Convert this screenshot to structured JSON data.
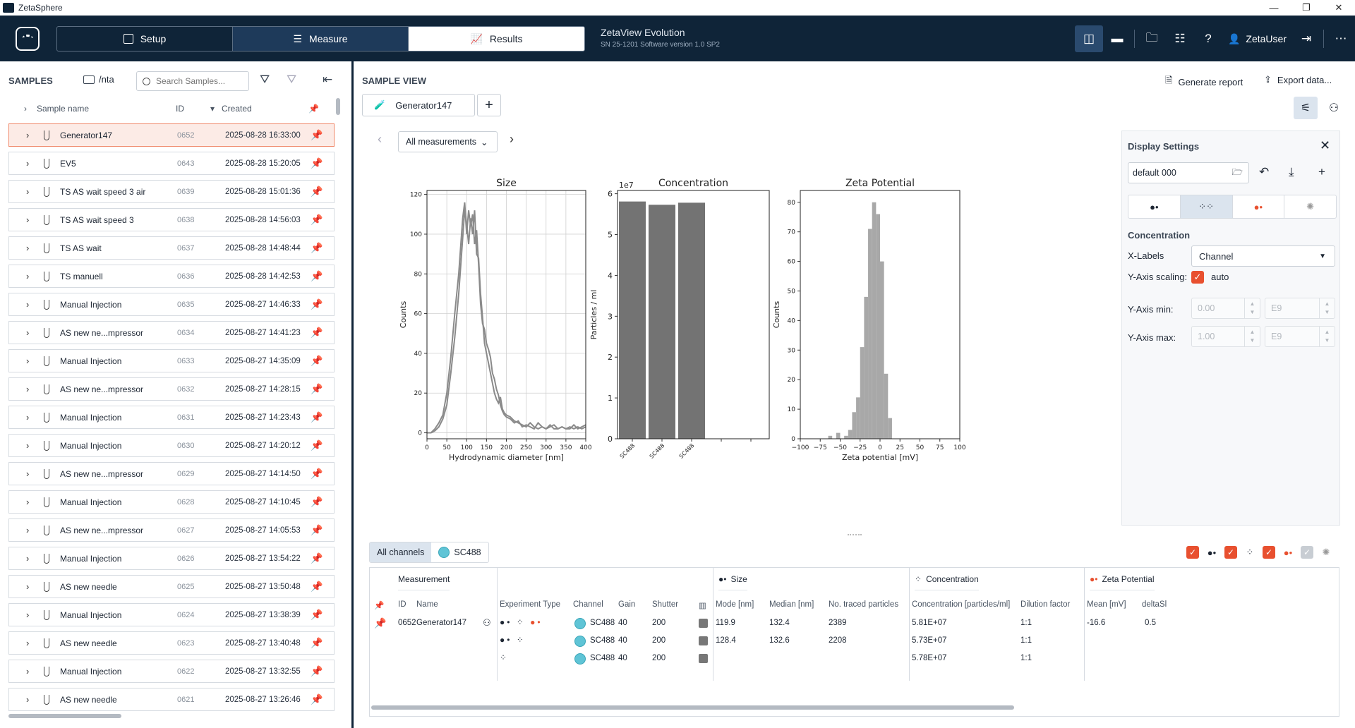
{
  "window": {
    "title": "ZetaSphere"
  },
  "nav": {
    "tabs": [
      {
        "label": "Setup"
      },
      {
        "label": "Measure"
      },
      {
        "label": "Results"
      }
    ],
    "active": "Results"
  },
  "device": {
    "name": "ZetaView Evolution",
    "info": "SN 25-1201  Software version 1.0 SP2"
  },
  "user": {
    "name": "ZetaUser"
  },
  "samples": {
    "header": "SAMPLES",
    "path": "/nta",
    "search_placeholder": "Search Samples...",
    "columns": {
      "name": "Sample name",
      "id": "ID",
      "created": "Created"
    },
    "rows": [
      {
        "name": "Generator147",
        "id": "0652",
        "created": "2025-08-28 16:33:00"
      },
      {
        "name": "EV5",
        "id": "0643",
        "created": "2025-08-28 15:20:05"
      },
      {
        "name": "TS AS wait speed 3 air",
        "id": "0639",
        "created": "2025-08-28 15:01:36"
      },
      {
        "name": "TS AS wait speed 3",
        "id": "0638",
        "created": "2025-08-28 14:56:03"
      },
      {
        "name": "TS AS wait",
        "id": "0637",
        "created": "2025-08-28 14:48:44"
      },
      {
        "name": "TS manuell",
        "id": "0636",
        "created": "2025-08-28 14:42:53"
      },
      {
        "name": "Manual Injection",
        "id": "0635",
        "created": "2025-08-27 14:46:33"
      },
      {
        "name": "AS new ne...mpressor",
        "id": "0634",
        "created": "2025-08-27 14:41:23"
      },
      {
        "name": "Manual Injection",
        "id": "0633",
        "created": "2025-08-27 14:35:09"
      },
      {
        "name": "AS new ne...mpressor",
        "id": "0632",
        "created": "2025-08-27 14:28:15"
      },
      {
        "name": "Manual Injection",
        "id": "0631",
        "created": "2025-08-27 14:23:43"
      },
      {
        "name": "Manual Injection",
        "id": "0630",
        "created": "2025-08-27 14:20:12"
      },
      {
        "name": "AS new ne...mpressor",
        "id": "0629",
        "created": "2025-08-27 14:14:50"
      },
      {
        "name": "Manual Injection",
        "id": "0628",
        "created": "2025-08-27 14:10:45"
      },
      {
        "name": "AS new ne...mpressor",
        "id": "0627",
        "created": "2025-08-27 14:05:53"
      },
      {
        "name": "Manual Injection",
        "id": "0626",
        "created": "2025-08-27 13:54:22"
      },
      {
        "name": "AS new needle",
        "id": "0625",
        "created": "2025-08-27 13:50:48"
      },
      {
        "name": "Manual Injection",
        "id": "0624",
        "created": "2025-08-27 13:38:39"
      },
      {
        "name": "AS new needle",
        "id": "0623",
        "created": "2025-08-27 13:40:48"
      },
      {
        "name": "Manual Injection",
        "id": "0622",
        "created": "2025-08-27 13:32:55"
      },
      {
        "name": "AS new needle",
        "id": "0621",
        "created": "2025-08-27 13:26:46"
      }
    ]
  },
  "sample_view": {
    "header": "SAMPLE VIEW",
    "tab": "Generator147",
    "generate_report": "Generate report",
    "export": "Export data...",
    "measurement_select": "All measurements"
  },
  "display_settings": {
    "title": "Display Settings",
    "preset": "default 000",
    "section": "Concentration",
    "xlabels_label": "X-Labels",
    "xlabels_value": "Channel",
    "yscale_label": "Y-Axis scaling:",
    "yscale_value": "auto",
    "ymin_label": "Y-Axis min:",
    "ymin_value": "0.00",
    "ymin_unit": "E9",
    "ymax_label": "Y-Axis max:",
    "ymax_value": "1.00",
    "ymax_unit": "E9"
  },
  "channels": {
    "all": "All channels",
    "sc": "SC488"
  },
  "table": {
    "groups": {
      "measurement": "Measurement",
      "size": "Size",
      "concentration": "Concentration",
      "zeta": "Zeta Potential"
    },
    "headers": {
      "id": "ID",
      "name": "Name",
      "exp": "Experiment Type",
      "channel": "Channel",
      "gain": "Gain",
      "shutter": "Shutter",
      "mode": "Mode [nm]",
      "median": "Median [nm]",
      "traced": "No. traced particles",
      "conc": "Concentration [particles/ml]",
      "dilution": "Dilution factor",
      "mean": "Mean [mV]",
      "delta": "deltaSl"
    },
    "rows": [
      {
        "id": "0652",
        "name": "Generator147",
        "channel": "SC488",
        "gain": "40",
        "shutter": "200",
        "mode": "119.9",
        "median": "132.4",
        "traced": "2389",
        "conc": "5.81E+07",
        "dilution": "1:1",
        "mean": "-16.6",
        "delta": "0.5"
      },
      {
        "channel": "SC488",
        "gain": "40",
        "shutter": "200",
        "mode": "128.4",
        "median": "132.6",
        "traced": "2208",
        "conc": "5.73E+07",
        "dilution": "1:1"
      },
      {
        "channel": "SC488",
        "gain": "40",
        "shutter": "200",
        "conc": "5.78E+07",
        "dilution": "1:1"
      }
    ]
  },
  "colors": {
    "navy": "#0f2438",
    "accent": "#e8502f",
    "bar": "#737373",
    "channel": "#5fc4d6"
  },
  "chart_data": [
    {
      "type": "line",
      "title": "Size",
      "xlabel": "Hydrodynamic diameter [nm]",
      "ylabel": "Counts",
      "xlim": [
        0,
        400
      ],
      "ylim": [
        -3,
        122
      ],
      "xticks": [
        0,
        50,
        100,
        150,
        200,
        250,
        300,
        350,
        400
      ],
      "yticks": [
        0,
        20,
        40,
        60,
        80,
        100,
        120
      ],
      "grid": true,
      "series": [
        {
          "x": [
            0,
            10,
            20,
            30,
            40,
            50,
            60,
            70,
            80,
            90,
            95,
            100,
            105,
            110,
            115,
            120,
            125,
            130,
            135,
            140,
            145,
            150,
            155,
            160,
            165,
            170,
            175,
            180,
            185,
            190,
            195,
            200,
            210,
            220,
            230,
            240,
            250,
            260,
            270,
            280,
            290,
            300,
            310,
            320,
            330,
            340,
            350,
            360,
            370,
            380,
            390,
            400
          ],
          "values": [
            0,
            0,
            1,
            3,
            7,
            14,
            30,
            48,
            70,
            98,
            112,
            105,
            95,
            108,
            100,
            112,
            90,
            88,
            70,
            58,
            45,
            40,
            35,
            30,
            25,
            20,
            17,
            15,
            18,
            12,
            10,
            9,
            8,
            6,
            5,
            4,
            3,
            5,
            3,
            2,
            3,
            2,
            4,
            2,
            2,
            3,
            2,
            2,
            4,
            2,
            3,
            4
          ]
        },
        {
          "x": [
            0,
            10,
            20,
            30,
            40,
            50,
            60,
            70,
            80,
            90,
            95,
            100,
            105,
            110,
            115,
            120,
            125,
            130,
            135,
            140,
            145,
            150,
            155,
            160,
            165,
            170,
            175,
            180,
            185,
            190,
            195,
            200,
            210,
            220,
            230,
            240,
            250,
            260,
            270,
            280,
            290,
            300,
            310,
            320,
            330,
            340,
            350,
            360,
            370,
            380,
            390,
            400
          ],
          "values": [
            0,
            0,
            2,
            5,
            9,
            20,
            38,
            60,
            80,
            108,
            116,
            100,
            112,
            104,
            110,
            95,
            102,
            85,
            65,
            55,
            52,
            45,
            42,
            38,
            30,
            27,
            22,
            19,
            14,
            11,
            9,
            8,
            7,
            5,
            6,
            3,
            4,
            3,
            2,
            5,
            3,
            2,
            3,
            4,
            2,
            3,
            2,
            3,
            2,
            3,
            2,
            3
          ]
        }
      ]
    },
    {
      "type": "bar",
      "title": "Concentration",
      "ylabel": "Particles / ml",
      "scale_label": "1e7",
      "categories": [
        "SC488",
        "SC488",
        "SC488"
      ],
      "values": [
        5.81,
        5.73,
        5.78
      ],
      "ylim": [
        0,
        6.08
      ],
      "yticks": [
        0,
        1,
        2,
        3,
        4,
        5,
        6
      ]
    },
    {
      "type": "bar",
      "title": "Zeta Potential",
      "xlabel": "Zeta potential [mV]",
      "ylabel": "Counts",
      "xlim": [
        -100,
        100
      ],
      "ylim": [
        0,
        84
      ],
      "xticks": [
        -100,
        -75,
        -50,
        -25,
        0,
        25,
        50,
        75,
        100
      ],
      "yticks": [
        0,
        10,
        20,
        30,
        40,
        50,
        60,
        70,
        80
      ],
      "bins_x": [
        -65,
        -60,
        -55,
        -50,
        -45,
        -40,
        -35,
        -30,
        -25,
        -20,
        -15,
        -10,
        -5,
        0,
        5,
        10
      ],
      "values": [
        1,
        0,
        2,
        0,
        1,
        3,
        9,
        14,
        31,
        48,
        71,
        80,
        76,
        60,
        22,
        7
      ]
    }
  ]
}
